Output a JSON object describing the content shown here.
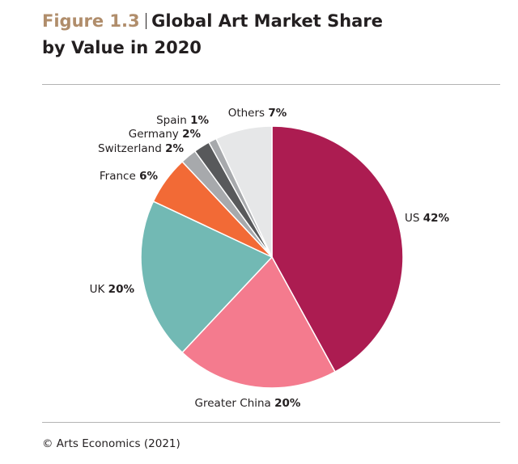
{
  "header": {
    "figure_label": "Figure 1.3",
    "title_line1": "Global Art Market Share",
    "title_line2": "by Value in 2020"
  },
  "source": "© Arts Economics (2021)",
  "chart_data": {
    "type": "pie",
    "title": "Global Art Market Share by Value in 2020",
    "unit": "%",
    "slices": [
      {
        "label": "US",
        "value": 42,
        "color": "#ac1c51"
      },
      {
        "label": "Greater China",
        "value": 20,
        "color": "#f47b8e"
      },
      {
        "label": "UK",
        "value": 20,
        "color": "#72b9b4"
      },
      {
        "label": "France",
        "value": 6,
        "color": "#f26a36"
      },
      {
        "label": "Switzerland",
        "value": 2,
        "color": "#a7a9ac"
      },
      {
        "label": "Germany",
        "value": 2,
        "color": "#58595b"
      },
      {
        "label": "Spain",
        "value": 1,
        "color": "#a7a9ac"
      },
      {
        "label": "Others",
        "value": 7,
        "color": "#e6e7e8"
      }
    ],
    "start": "12 o'clock",
    "direction": "clockwise",
    "slice_border": "#ffffff"
  }
}
